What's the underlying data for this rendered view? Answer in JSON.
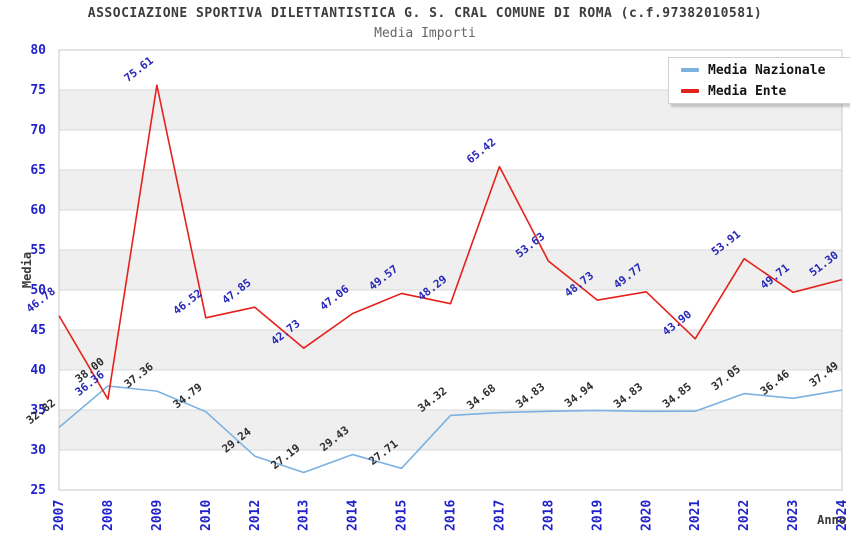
{
  "chart_data": {
    "type": "line",
    "title": "ASSOCIAZIONE SPORTIVA DILETTANTISTICA G. S. CRAL COMUNE DI ROMA (c.f.97382010581)",
    "subtitle": "Media Importi",
    "xlabel": "Anno",
    "ylabel": "Media",
    "ylim": [
      25,
      80
    ],
    "ytick_step": 5,
    "grid": true,
    "legend_position": "top-right",
    "categories": [
      "2007",
      "2008",
      "2009",
      "2010",
      "2012",
      "2013",
      "2014",
      "2015",
      "2016",
      "2017",
      "2018",
      "2019",
      "2020",
      "2021",
      "2022",
      "2023",
      "2024"
    ],
    "series": [
      {
        "name": "Media Nazionale",
        "color": "#7cb1e2",
        "label_color": "#2e2e2e",
        "values": [
          32.82,
          38.0,
          37.36,
          34.79,
          29.24,
          27.19,
          29.43,
          27.71,
          34.32,
          34.68,
          34.83,
          34.94,
          34.83,
          34.85,
          37.05,
          36.46,
          37.49
        ]
      },
      {
        "name": "Media Ente",
        "color": "#e6211c",
        "label_color": "#2727b8",
        "values": [
          46.78,
          36.36,
          75.61,
          46.52,
          47.85,
          42.73,
          47.06,
          49.57,
          48.29,
          65.42,
          53.63,
          48.73,
          49.77,
          43.9,
          53.91,
          49.71,
          51.3
        ]
      }
    ],
    "colors": {
      "tick_label": "#2222cc",
      "axis_title": "#3a3a3a",
      "band": "#efefef",
      "grid_line": "#d9d9d9",
      "plot_border": "#c9c9c9",
      "title_text": "#3c3c3c",
      "subtitle_text": "#666666"
    }
  }
}
